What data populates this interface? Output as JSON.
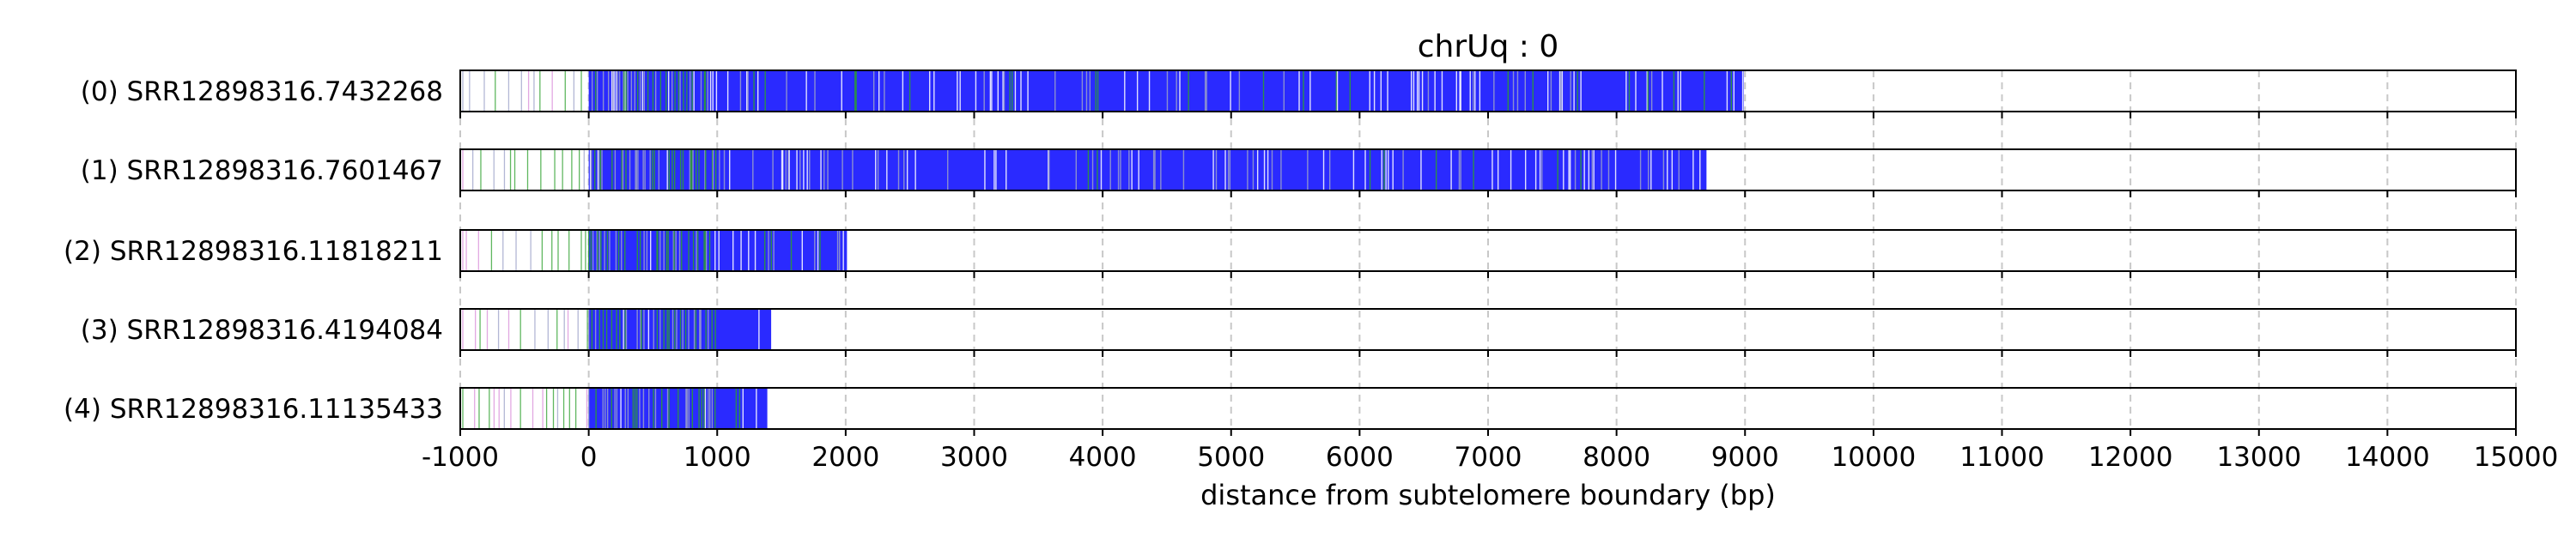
{
  "chart_data": {
    "type": "bar",
    "title": "chrUq : 0",
    "xlabel": "distance from subtelomere boundary (bp)",
    "ylabel": "",
    "xlim": [
      -1000,
      15000
    ],
    "x_ticks": [
      -1000,
      0,
      1000,
      2000,
      3000,
      4000,
      5000,
      6000,
      7000,
      8000,
      9000,
      10000,
      11000,
      12000,
      13000,
      14000,
      15000
    ],
    "grid": "vertical dashed at x ticks",
    "colors": {
      "telomere_repeat": "#2a2aff",
      "variant_green": "#2ca02c",
      "variant_other": "#9aa0c8",
      "frame": "#000000",
      "grid": "#c8c8c8"
    },
    "reads": [
      {
        "label": "(0) SRR12898316.7432268",
        "start": -1000,
        "end": 8990,
        "density_start": 0
      },
      {
        "label": "(1) SRR12898316.7601467",
        "start": -1000,
        "end": 8700,
        "density_start": 0
      },
      {
        "label": "(2) SRR12898316.11818211",
        "start": -1000,
        "end": 2010,
        "density_start": 0
      },
      {
        "label": "(3) SRR12898316.4194084",
        "start": -1000,
        "end": 1420,
        "density_start": 0
      },
      {
        "label": "(4) SRR12898316.11135433",
        "start": -1000,
        "end": 1390,
        "density_start": 0
      }
    ]
  }
}
